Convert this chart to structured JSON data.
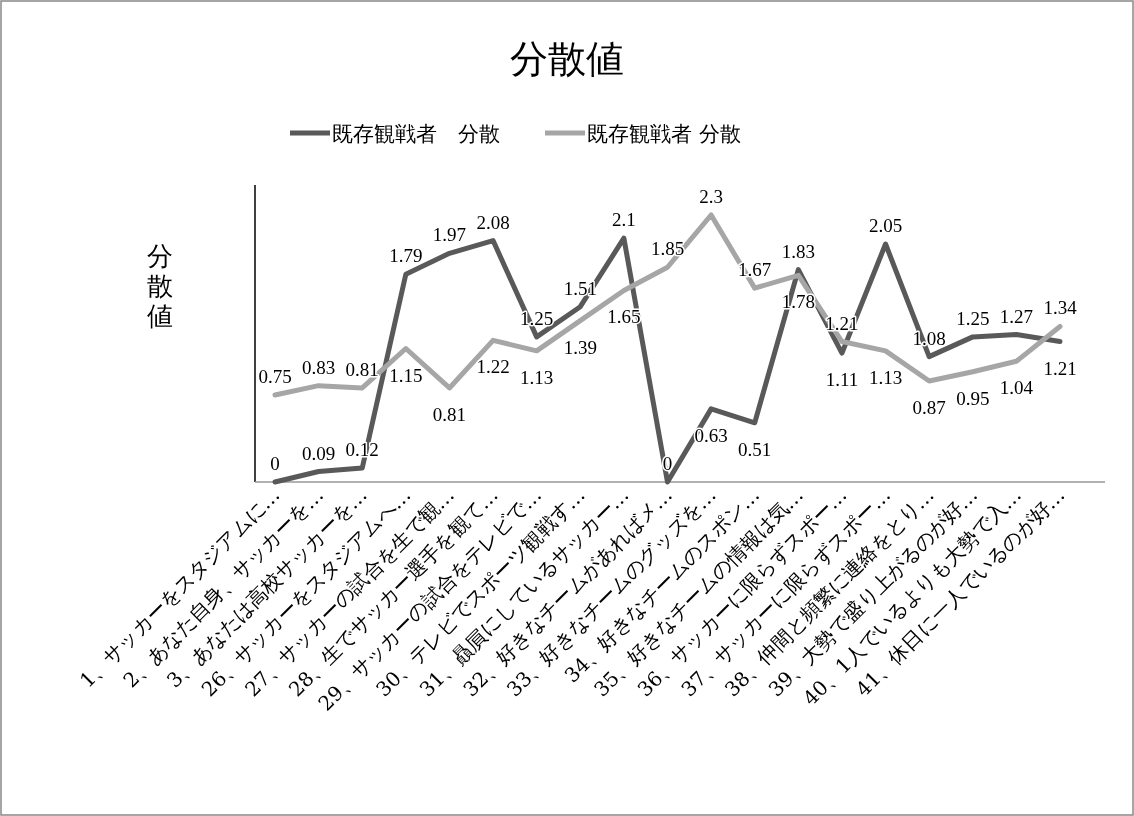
{
  "chart_data": {
    "type": "line",
    "title": "分散値",
    "ylabel": "分散値",
    "categories": [
      "1、サッカーをスタジアムに…",
      "2、あなた自身、サッカーを…",
      "3、あなたは高校サッカーを…",
      "26、サッカーをスタジアムへ…",
      "27、サッカーの試合を生で観…",
      "28、生でサッカー選手を観て…",
      "29、サッカーの試合をテレビで…",
      "30、テレビでスポーツ観戦す…",
      "31、贔屓にしているサッカー…",
      "32、好きなチームがあればメ…",
      "33、好きなチームのグッズを…",
      "34、好きなチームのスポン…",
      "35、好きなチームの情報は気…",
      "36、サッカーに限らずスポー…",
      "37、サッカーに限らずスポー…",
      "38、仲間と頻繁に連絡をとり…",
      "39、大勢で盛り上がるのが好…",
      "40、1人でいるよりも大勢で入…",
      "41、休日に一人でいるのが好…"
    ],
    "series": [
      {
        "name": "既存観戦者　分散",
        "color": "#595959",
        "values": [
          0,
          0.09,
          0.12,
          1.79,
          1.97,
          2.08,
          1.25,
          1.51,
          2.1,
          0,
          0.63,
          0.51,
          1.83,
          1.11,
          2.05,
          1.08,
          1.25,
          1.27,
          1.21
        ]
      },
      {
        "name": "既存観戦者 分散",
        "color": "#a6a6a6",
        "values": [
          0.75,
          0.83,
          0.81,
          1.15,
          0.81,
          1.22,
          1.13,
          1.39,
          1.65,
          1.85,
          2.3,
          1.67,
          1.78,
          1.21,
          1.13,
          0.87,
          0.95,
          1.04,
          1.34
        ]
      }
    ],
    "data_labels": true,
    "legend": "top"
  }
}
